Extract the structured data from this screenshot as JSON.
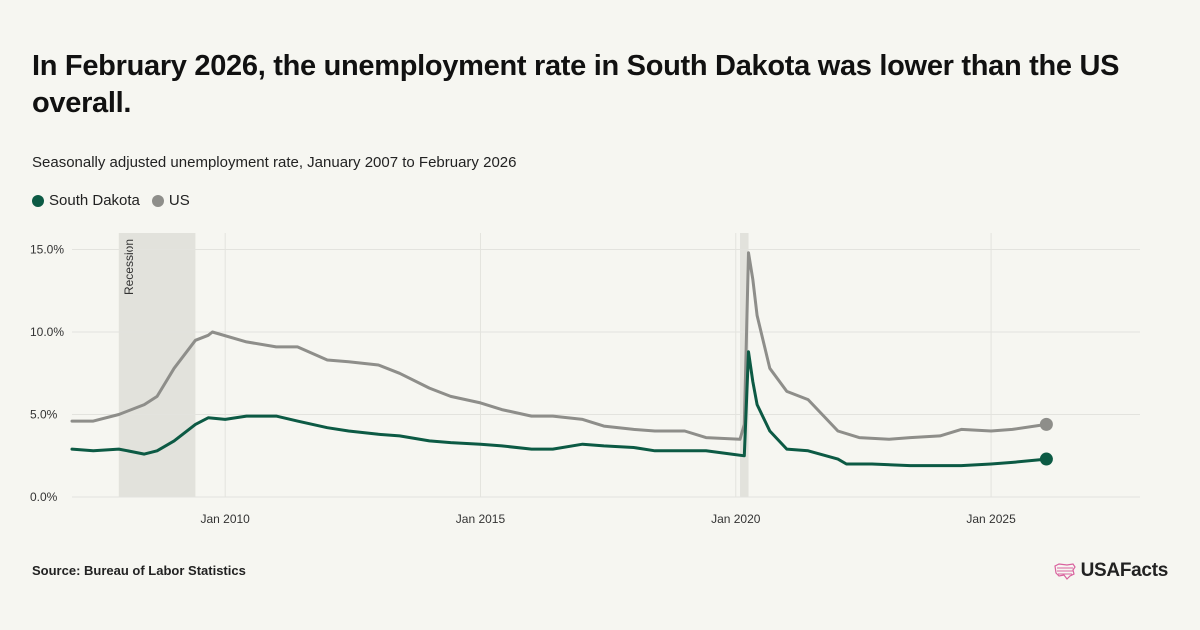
{
  "title": "In February 2026, the unemployment rate in South Dakota was lower than the US overall.",
  "subtitle": "Seasonally adjusted unemployment rate, January 2007 to February 2026",
  "source": "Source: Bureau of Labor Statistics",
  "brand": "USAFacts",
  "icons": {
    "brand_logo": "us-map-stripes-icon"
  },
  "colors": {
    "south_dakota": "#0c5a44",
    "us": "#8e8e8a",
    "recession": "#e2e2dc",
    "background": "#f6f6f1",
    "brand_pink": "#d9619e"
  },
  "chart_data": {
    "type": "line",
    "x_range": [
      "2007-01",
      "2027-12"
    ],
    "ylim": [
      0,
      16
    ],
    "y_ticks": [
      {
        "value": 0,
        "label": "0.0%"
      },
      {
        "value": 5,
        "label": "5.0%"
      },
      {
        "value": 10,
        "label": "10.0%"
      },
      {
        "value": 15,
        "label": "15.0%"
      }
    ],
    "x_ticks": [
      {
        "date": "2010-01",
        "label": "Jan 2010"
      },
      {
        "date": "2015-01",
        "label": "Jan 2015"
      },
      {
        "date": "2020-01",
        "label": "Jan 2020"
      },
      {
        "date": "2025-01",
        "label": "Jan 2025"
      }
    ],
    "grid": "horizontal and vertical",
    "legend_position": "top-left",
    "shaded_periods": [
      {
        "start": "2007-12",
        "end": "2009-06",
        "label": "Recession"
      },
      {
        "start": "2020-02",
        "end": "2020-04",
        "label": ""
      }
    ],
    "series": [
      {
        "name": "South Dakota",
        "points": [
          [
            "2007-01",
            2.9
          ],
          [
            "2007-06",
            2.8
          ],
          [
            "2007-12",
            2.9
          ],
          [
            "2008-06",
            2.6
          ],
          [
            "2008-09",
            2.8
          ],
          [
            "2009-01",
            3.4
          ],
          [
            "2009-06",
            4.4
          ],
          [
            "2009-09",
            4.8
          ],
          [
            "2010-01",
            4.7
          ],
          [
            "2010-06",
            4.9
          ],
          [
            "2011-01",
            4.9
          ],
          [
            "2011-06",
            4.6
          ],
          [
            "2012-01",
            4.2
          ],
          [
            "2012-06",
            4.0
          ],
          [
            "2013-01",
            3.8
          ],
          [
            "2013-06",
            3.7
          ],
          [
            "2014-01",
            3.4
          ],
          [
            "2014-06",
            3.3
          ],
          [
            "2015-01",
            3.2
          ],
          [
            "2015-06",
            3.1
          ],
          [
            "2016-01",
            2.9
          ],
          [
            "2016-06",
            2.9
          ],
          [
            "2017-01",
            3.2
          ],
          [
            "2017-06",
            3.1
          ],
          [
            "2018-01",
            3.0
          ],
          [
            "2018-06",
            2.8
          ],
          [
            "2019-01",
            2.8
          ],
          [
            "2019-06",
            2.8
          ],
          [
            "2019-12",
            2.6
          ],
          [
            "2020-03",
            2.5
          ],
          [
            "2020-04",
            8.8
          ],
          [
            "2020-05",
            7.0
          ],
          [
            "2020-06",
            5.6
          ],
          [
            "2020-09",
            4.0
          ],
          [
            "2021-01",
            2.9
          ],
          [
            "2021-06",
            2.8
          ],
          [
            "2022-01",
            2.3
          ],
          [
            "2022-03",
            2.0
          ],
          [
            "2022-09",
            2.0
          ],
          [
            "2023-06",
            1.9
          ],
          [
            "2024-03",
            1.9
          ],
          [
            "2024-06",
            1.9
          ],
          [
            "2025-01",
            2.0
          ],
          [
            "2025-06",
            2.1
          ],
          [
            "2026-02",
            2.3
          ]
        ]
      },
      {
        "name": "US",
        "points": [
          [
            "2007-01",
            4.6
          ],
          [
            "2007-06",
            4.6
          ],
          [
            "2007-12",
            5.0
          ],
          [
            "2008-06",
            5.6
          ],
          [
            "2008-09",
            6.1
          ],
          [
            "2009-01",
            7.8
          ],
          [
            "2009-06",
            9.5
          ],
          [
            "2009-09",
            9.8
          ],
          [
            "2009-10",
            10.0
          ],
          [
            "2010-06",
            9.4
          ],
          [
            "2011-01",
            9.1
          ],
          [
            "2011-06",
            9.1
          ],
          [
            "2012-01",
            8.3
          ],
          [
            "2012-06",
            8.2
          ],
          [
            "2013-01",
            8.0
          ],
          [
            "2013-06",
            7.5
          ],
          [
            "2014-01",
            6.6
          ],
          [
            "2014-06",
            6.1
          ],
          [
            "2015-01",
            5.7
          ],
          [
            "2015-06",
            5.3
          ],
          [
            "2016-01",
            4.9
          ],
          [
            "2016-06",
            4.9
          ],
          [
            "2017-01",
            4.7
          ],
          [
            "2017-06",
            4.3
          ],
          [
            "2018-01",
            4.1
          ],
          [
            "2018-06",
            4.0
          ],
          [
            "2019-01",
            4.0
          ],
          [
            "2019-06",
            3.6
          ],
          [
            "2020-02",
            3.5
          ],
          [
            "2020-03",
            4.4
          ],
          [
            "2020-04",
            14.8
          ],
          [
            "2020-05",
            13.2
          ],
          [
            "2020-06",
            11.0
          ],
          [
            "2020-09",
            7.8
          ],
          [
            "2021-01",
            6.4
          ],
          [
            "2021-06",
            5.9
          ],
          [
            "2022-01",
            4.0
          ],
          [
            "2022-06",
            3.6
          ],
          [
            "2023-01",
            3.5
          ],
          [
            "2023-06",
            3.6
          ],
          [
            "2024-01",
            3.7
          ],
          [
            "2024-06",
            4.1
          ],
          [
            "2025-01",
            4.0
          ],
          [
            "2025-06",
            4.1
          ],
          [
            "2026-02",
            4.4
          ]
        ]
      }
    ]
  }
}
